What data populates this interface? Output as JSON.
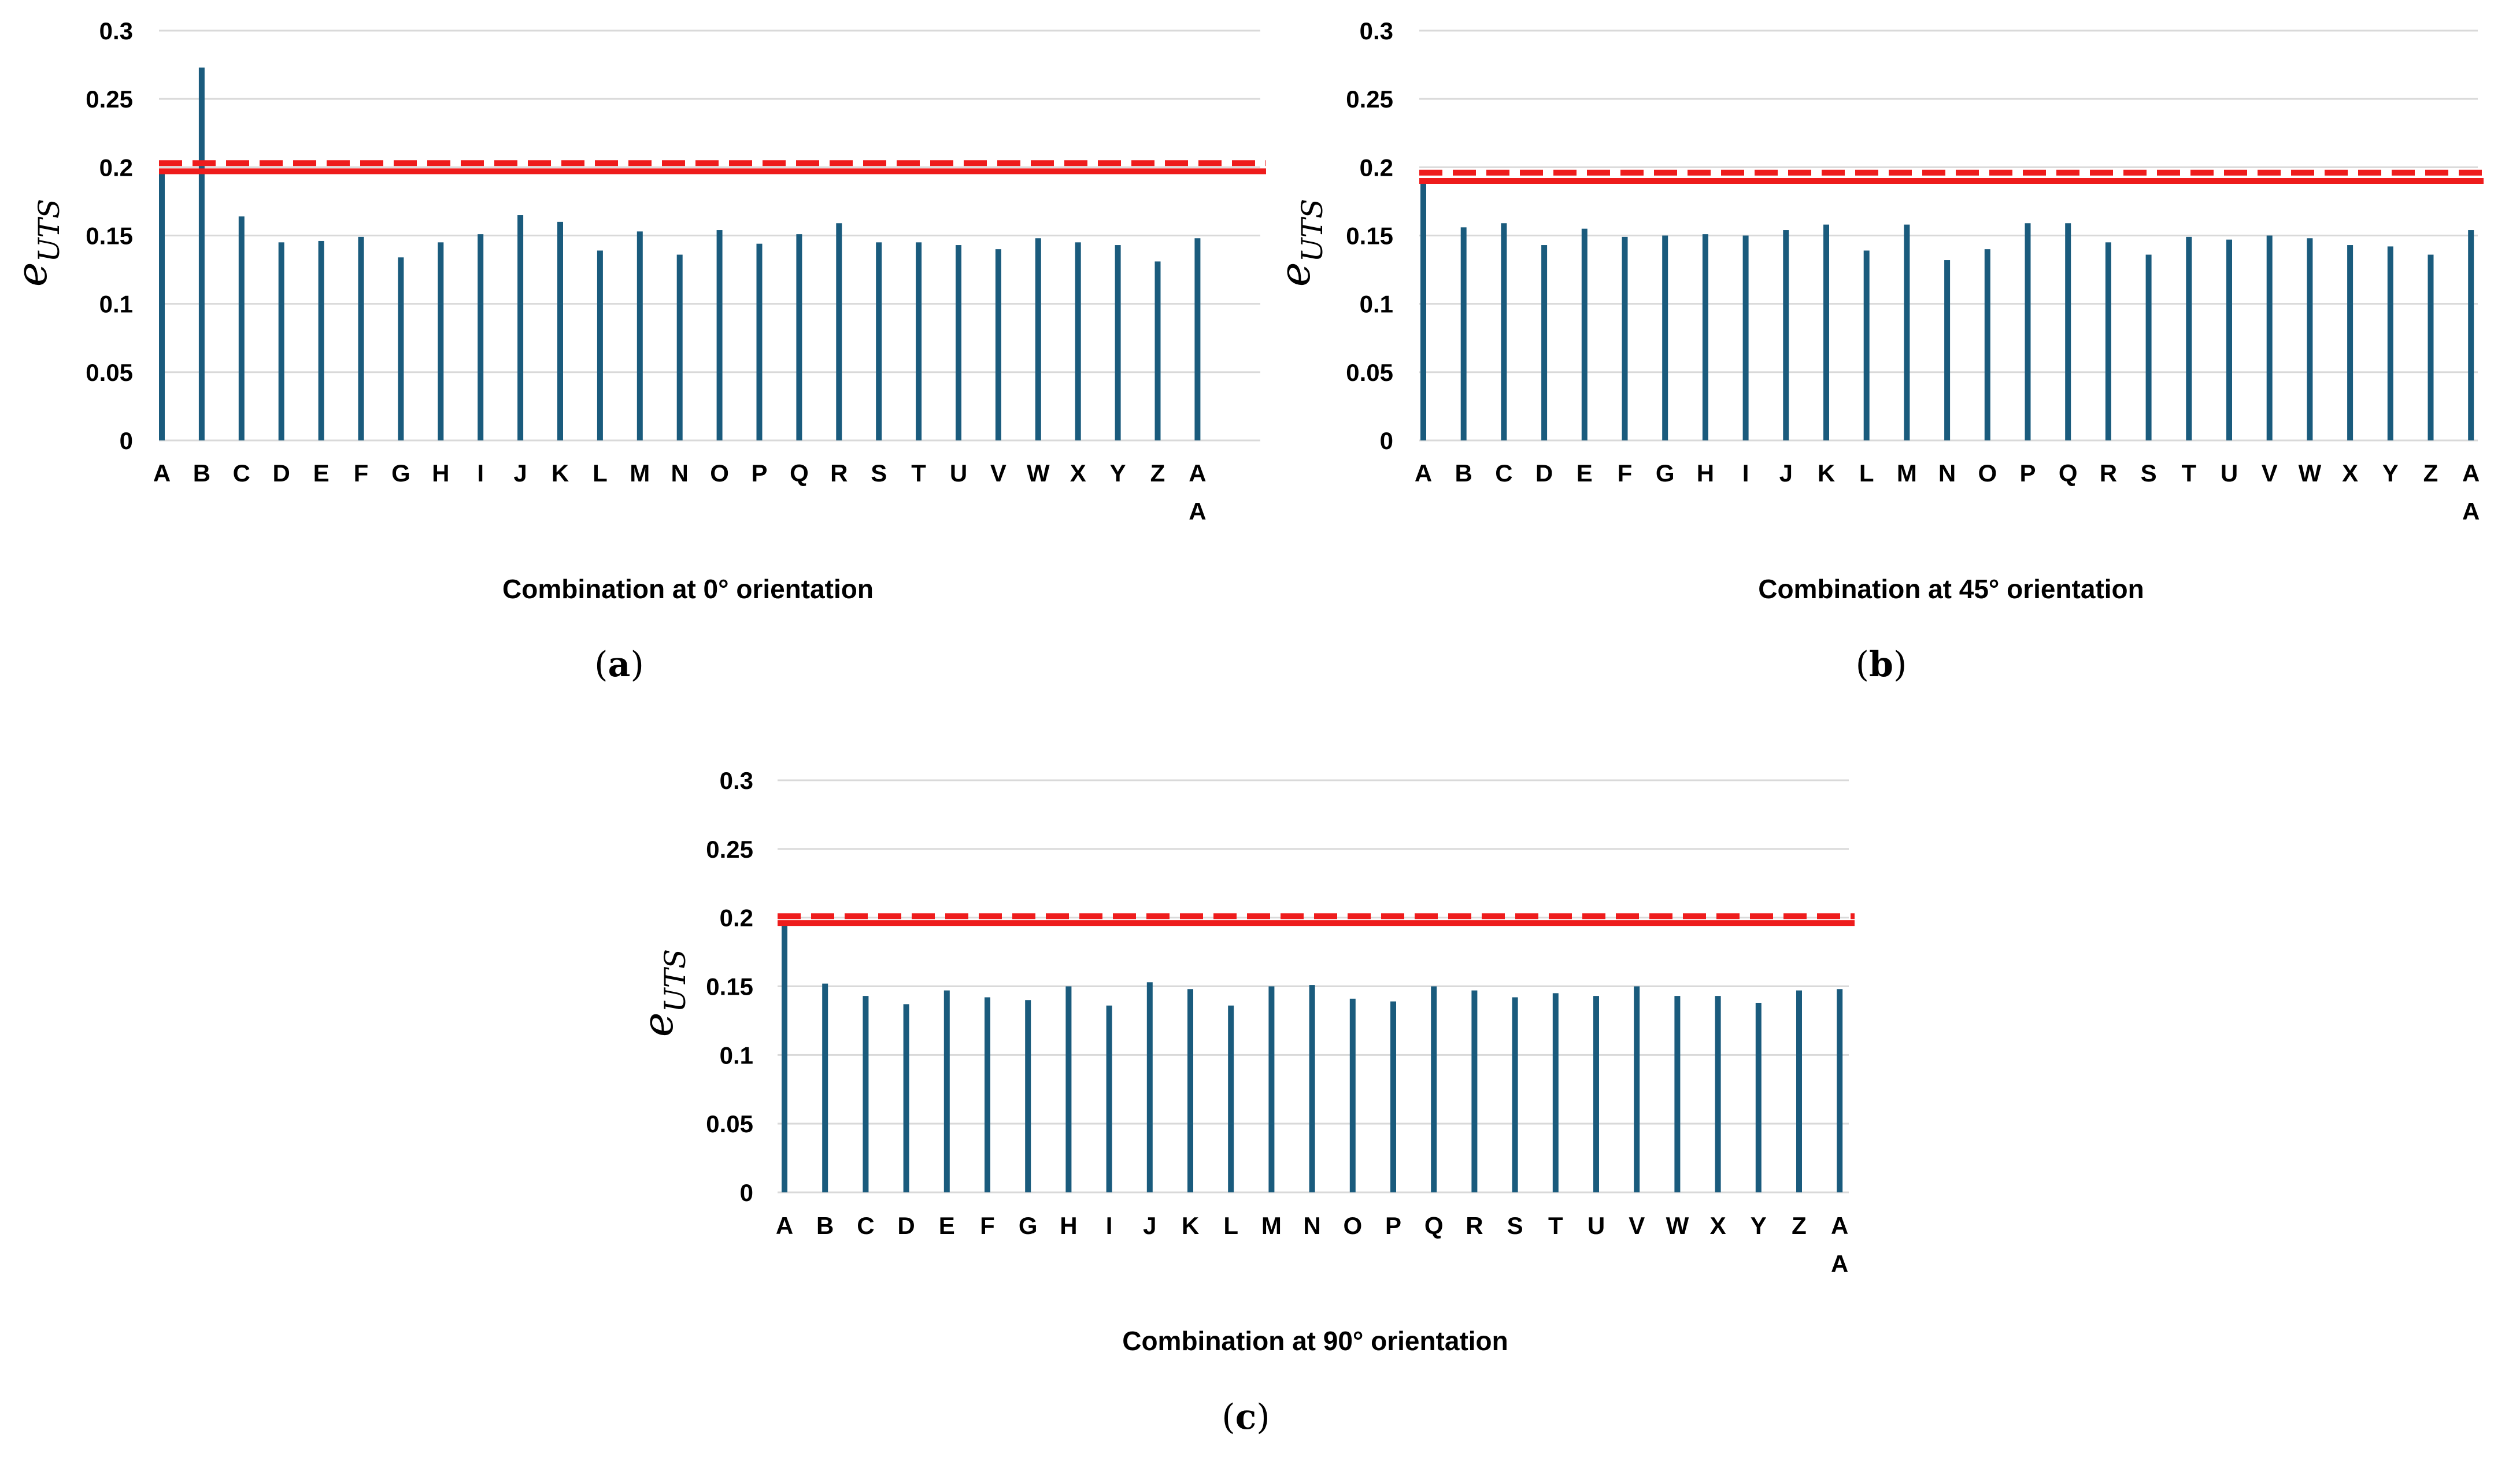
{
  "colors": {
    "bar": "#1a5b7d",
    "reference": "#ee1c1c",
    "grid": "#d9d9d9"
  },
  "chart_data": [
    {
      "type": "bar",
      "panel_label": "a",
      "categories": [
        "A",
        "B",
        "C",
        "D",
        "E",
        "F",
        "G",
        "H",
        "I",
        "J",
        "K",
        "L",
        "M",
        "N",
        "O",
        "P",
        "Q",
        "R",
        "S",
        "T",
        "U",
        "V",
        "W",
        "X",
        "Y",
        "Z",
        "AA"
      ],
      "values": [
        0.197,
        0.273,
        0.164,
        0.145,
        0.146,
        0.149,
        0.134,
        0.145,
        0.151,
        0.165,
        0.16,
        0.139,
        0.153,
        0.136,
        0.154,
        0.144,
        0.151,
        0.159,
        0.145,
        0.145,
        0.143,
        0.14,
        0.148,
        0.145,
        0.143,
        0.131,
        0.148
      ],
      "reference_lines": [
        {
          "value": 0.197,
          "style": "solid"
        },
        {
          "value": 0.203,
          "style": "dashed"
        }
      ],
      "xlabel": "Combination at 0° orientation",
      "ylabel": "e",
      "ylabel_sub": "UTS",
      "ylim": [
        0,
        0.3
      ],
      "yticks": [
        "0",
        "0.05",
        "0.1",
        "0.15",
        "0.2",
        "0.25",
        "0.3"
      ],
      "grid": true
    },
    {
      "type": "bar",
      "panel_label": "b",
      "categories": [
        "A",
        "B",
        "C",
        "D",
        "E",
        "F",
        "G",
        "H",
        "I",
        "J",
        "K",
        "L",
        "M",
        "N",
        "O",
        "P",
        "Q",
        "R",
        "S",
        "T",
        "U",
        "V",
        "W",
        "X",
        "Y",
        "Z",
        "AA"
      ],
      "values": [
        0.19,
        0.156,
        0.159,
        0.143,
        0.155,
        0.149,
        0.15,
        0.151,
        0.15,
        0.154,
        0.158,
        0.139,
        0.158,
        0.132,
        0.14,
        0.159,
        0.159,
        0.145,
        0.136,
        0.149,
        0.147,
        0.15,
        0.148,
        0.143,
        0.142,
        0.136,
        0.154
      ],
      "reference_lines": [
        {
          "value": 0.19,
          "style": "solid"
        },
        {
          "value": 0.196,
          "style": "dashed"
        }
      ],
      "xlabel": "Combination at 45° orientation",
      "ylabel": "e",
      "ylabel_sub": "UTS",
      "ylim": [
        0,
        0.3
      ],
      "yticks": [
        "0",
        "0.05",
        "0.1",
        "0.15",
        "0.2",
        "0.25",
        "0.3"
      ],
      "grid": true
    },
    {
      "type": "bar",
      "panel_label": "c",
      "categories": [
        "A",
        "B",
        "C",
        "D",
        "E",
        "F",
        "G",
        "H",
        "I",
        "J",
        "K",
        "L",
        "M",
        "N",
        "O",
        "P",
        "Q",
        "R",
        "S",
        "T",
        "U",
        "V",
        "W",
        "X",
        "Y",
        "Z",
        "AA"
      ],
      "values": [
        0.196,
        0.152,
        0.143,
        0.137,
        0.147,
        0.142,
        0.14,
        0.15,
        0.136,
        0.153,
        0.148,
        0.136,
        0.15,
        0.151,
        0.141,
        0.139,
        0.15,
        0.147,
        0.142,
        0.145,
        0.143,
        0.15,
        0.143,
        0.143,
        0.138,
        0.147,
        0.148
      ],
      "reference_lines": [
        {
          "value": 0.196,
          "style": "solid"
        },
        {
          "value": 0.201,
          "style": "dashed"
        }
      ],
      "xlabel": "Combination at 90° orientation",
      "ylabel": "e",
      "ylabel_sub": "UTS",
      "ylim": [
        0,
        0.3
      ],
      "yticks": [
        "0",
        "0.05",
        "0.1",
        "0.15",
        "0.2",
        "0.25",
        "0.3"
      ],
      "grid": true
    }
  ]
}
